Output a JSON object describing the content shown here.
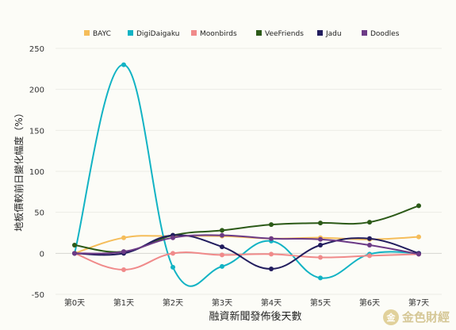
{
  "chart_data": {
    "type": "line",
    "xlabel": "融資新聞發佈後天數",
    "ylabel": "地板價較前日變化幅度（%）",
    "categories": [
      "第0天",
      "第1天",
      "第2天",
      "第3天",
      "第4天",
      "第5天",
      "第6天",
      "第7天"
    ],
    "ylim": [
      -50,
      250
    ],
    "yticks": [
      -50,
      0,
      50,
      100,
      150,
      200,
      250
    ],
    "grid": "horizontal",
    "legend_position": "top",
    "series": [
      {
        "name": "BAYC",
        "color": "#f5bd5a",
        "values": [
          0,
          19,
          21,
          21,
          18,
          19,
          17,
          20
        ]
      },
      {
        "name": "DigiDaigaku",
        "color": "#12b3c4",
        "values": [
          0,
          230,
          -17,
          -16,
          15,
          -30,
          -1,
          0
        ]
      },
      {
        "name": "Moonbirds",
        "color": "#f08a8a",
        "values": [
          0,
          -20,
          0,
          -2,
          -1,
          -5,
          -3,
          -1
        ]
      },
      {
        "name": "VeeFriends",
        "color": "#2c5a18",
        "values": [
          10,
          2,
          22,
          28,
          35,
          37,
          38,
          58
        ]
      },
      {
        "name": "Jadu",
        "color": "#221d5e",
        "values": [
          0,
          0,
          22,
          8,
          -19,
          10,
          18,
          0
        ]
      },
      {
        "name": "Doodles",
        "color": "#6c3a86",
        "values": [
          0,
          2,
          19,
          22,
          18,
          17,
          10,
          -1
        ]
      }
    ]
  },
  "watermark": {
    "text": "金色財經",
    "logo_glyph": "金"
  }
}
